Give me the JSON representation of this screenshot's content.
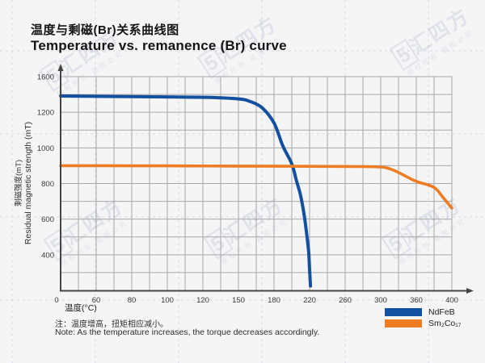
{
  "title": {
    "zh": "温度与剩磁(Br)关系曲线图",
    "en": "Temperature vs. remanence (Br) curve"
  },
  "chart_data": {
    "type": "line",
    "title": "Temperature vs. remanence (Br) curve",
    "xlabel": "温度(°C)",
    "ylabel_zh": "剩磁强度(mT)",
    "ylabel_en": "Residual magnetic strength (mT)",
    "x_tick_labels": [
      "0",
      "60",
      "80",
      "100",
      "120",
      "150",
      "180",
      "220",
      "260",
      "300",
      "360",
      "400"
    ],
    "y_tick_labels": [
      "1600",
      "1200",
      "1000",
      "800",
      "600",
      "400"
    ],
    "grid": true,
    "legend_position": "bottom-right",
    "axis_color": "#454545",
    "grid_color": "#a8a8a8",
    "series": [
      {
        "name": "NdFeB",
        "color": "#1350a0",
        "points": [
          [
            0,
            1383
          ],
          [
            40,
            1380
          ],
          [
            80,
            1375
          ],
          [
            120,
            1368
          ],
          [
            150,
            1350
          ],
          [
            160,
            1320
          ],
          [
            170,
            1250
          ],
          [
            180,
            1140
          ],
          [
            190,
            1010
          ],
          [
            200,
            910
          ],
          [
            205,
            820
          ],
          [
            210,
            730
          ],
          [
            214,
            620
          ],
          [
            217,
            505
          ],
          [
            219,
            415
          ],
          [
            220,
            315
          ],
          [
            221,
            225
          ]
        ]
      },
      {
        "name": "Sm₂Co₁₇",
        "color": "#ee7c22",
        "points": [
          [
            0,
            900
          ],
          [
            50,
            900
          ],
          [
            100,
            899
          ],
          [
            150,
            898
          ],
          [
            200,
            897
          ],
          [
            250,
            896
          ],
          [
            280,
            895
          ],
          [
            300,
            893
          ],
          [
            310,
            888
          ],
          [
            320,
            877
          ],
          [
            330,
            862
          ],
          [
            340,
            845
          ],
          [
            360,
            812
          ],
          [
            380,
            778
          ],
          [
            390,
            722
          ],
          [
            400,
            662
          ]
        ]
      }
    ]
  },
  "legend": {
    "items": [
      {
        "label": "NdFeB",
        "color": "#1350a0"
      },
      {
        "label": "Sm₂Co₁₇",
        "color": "#ee7c22"
      }
    ]
  },
  "note": {
    "zh": "注：温度增高，扭矩相应减小。",
    "en": "Note: As the temperature increases, the torque decreases accordingly."
  },
  "watermark": {
    "logo": "5",
    "text": "汇四方",
    "subtext": "版权所有 盗图必究"
  }
}
